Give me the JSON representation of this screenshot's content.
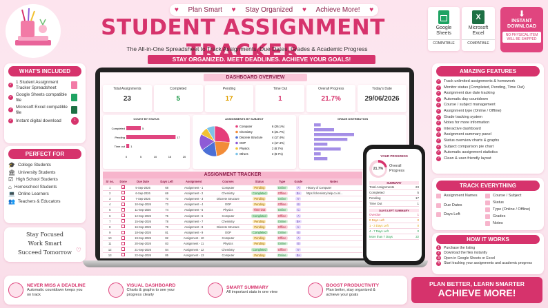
{
  "banner": [
    "Plan Smart",
    "Stay Organized",
    "Achieve More!"
  ],
  "title": "STUDENT ASSIGNMENT TRACKER",
  "subtitle": "The All-in-One Spreadsheet to Track Assignments, Due Dates, Grades & Academic Progress",
  "ribbon": "STAY ORGANIZED. MEET DEADLINES. ACHIEVE YOUR GOALS!",
  "compat": [
    {
      "name": "Google Sheets",
      "tag": "COMPATIBLE"
    },
    {
      "name": "Microsoft Excel",
      "tag": "COMPATIBLE"
    }
  ],
  "download": {
    "title": "INSTANT DOWNLOAD",
    "note": "NO PHYSICAL ITEM WILL BE SHIPPED"
  },
  "included": {
    "title": "WHAT'S INCLUDED",
    "items": [
      "1 Student Assignment Tracker Spreadsheet",
      "Google Sheets compatible file",
      "Microsoft Excel compatible file",
      "Instant digital download"
    ]
  },
  "perfect": {
    "title": "PERFECT FOR",
    "items": [
      "College Students",
      "University Students",
      "High School Students",
      "Homeschool Students",
      "Online Learners",
      "Teachers & Educators"
    ]
  },
  "motto": [
    "Stay Focused",
    "Work Smart",
    "Succeed Tomorrow"
  ],
  "features": {
    "title": "AMAZING FEATURES",
    "items": [
      "Track unlimited assignments & homework",
      "Monitor status (Completed, Pending, Time Out)",
      "Assignment due date tracking",
      "Automatic day countdown",
      "Course / subject management",
      "Assignment type (Online / Offline)",
      "Grade tracking system",
      "Notes for more information",
      "Interactive dashboard",
      "Assignment summary panel",
      "Status overview charts & graphs",
      "Subject comparison pie chart",
      "Automatic assignment statistics",
      "Clean & user-friendly layout"
    ]
  },
  "track": {
    "title": "TRACK EVERYTHING",
    "left": [
      "Assignment Names",
      "Due Dates",
      "Days Left"
    ],
    "right": [
      "Course / Subject",
      "Status",
      "Type (Online / Offline)",
      "Grades",
      "Notes"
    ]
  },
  "how": {
    "title": "HOW IT WORKS",
    "steps": [
      "Purchase the listing",
      "Download the files instantly",
      "Open in Google Sheets or Excel",
      "Start tracking your assignments and academic progress"
    ]
  },
  "dashboard": {
    "title": "DASHBOARD OVERVIEW",
    "kpis": [
      {
        "label": "Total Assignments",
        "value": "23"
      },
      {
        "label": "Completed",
        "value": "5"
      },
      {
        "label": "Pending",
        "value": "17"
      },
      {
        "label": "Time Out",
        "value": "1"
      },
      {
        "label": "Overall Progress",
        "value": "21.7%"
      },
      {
        "label": "Today's Date",
        "value": "29/06/2026"
      }
    ],
    "status_title": "COUNT BY STATUS",
    "subject_title": "ASSIGNMENTS BY SUBJECT",
    "grade_title": "GRADE DISTRIBUTION"
  },
  "chart_data": [
    {
      "type": "bar",
      "title": "COUNT BY STATUS",
      "categories": [
        "Completed",
        "Pending",
        "Time out"
      ],
      "values": [
        5,
        17,
        1
      ],
      "xlim": [
        0,
        20
      ],
      "xticks": [
        "0",
        "5",
        "10",
        "15",
        "20"
      ]
    },
    {
      "type": "pie",
      "title": "ASSIGNMENTS BY SUBJECT",
      "labels": [
        "Computer",
        "Chemistry",
        "Discrete Structure",
        "OOP",
        "Physics",
        "Others"
      ],
      "values": [
        6,
        5,
        4,
        4,
        2,
        2
      ],
      "display": [
        "6 (26.1%)",
        "5 (21.7%)",
        "4 (17.4%)",
        "4 (17.4%)",
        "2 (8.7%)",
        "2 (8.7%)"
      ],
      "colors": [
        "#e53e7a",
        "#f28c38",
        "#4b6fd6",
        "#8e5bd6",
        "#f2c232",
        "#7dc3e8"
      ]
    },
    {
      "type": "bar",
      "title": "GRADE DISTRIBUTION",
      "values": [
        1,
        3,
        6,
        5,
        2,
        4,
        1,
        2
      ]
    }
  ],
  "tracker": {
    "title": "ASSIGNMENT TRACKER",
    "headers": [
      "Sr no.",
      "Done",
      "Due Date",
      "Days Left",
      "Assignment",
      "Courses",
      "Status",
      "Type",
      "Grade",
      "Notes"
    ],
    "rows": [
      [
        "1",
        "✔",
        "5-Sep-2026",
        "68",
        "Assignment - 1",
        "Computer",
        "Pending",
        "Online",
        "A",
        "History of Computer"
      ],
      [
        "2",
        "",
        "6-Sep-2026",
        "69",
        "Assignment - 2",
        "Chemistry",
        "Completed",
        "Offline",
        "B+",
        "https://chemistry.help.co.in/..."
      ],
      [
        "3",
        "",
        "7-Sep-2026",
        "70",
        "Assignment - 3",
        "Discrete Structure",
        "Pending",
        "Online",
        "A-",
        ""
      ],
      [
        "4",
        "",
        "10-Sep-2026",
        "73",
        "Assignment - 4",
        "OOP",
        "Pending",
        "Offline",
        "B",
        ""
      ],
      [
        "5",
        "",
        "11-Sep-2026",
        "74",
        "Assignment - 5",
        "Physics",
        "Time Out",
        "Online",
        "C",
        ""
      ],
      [
        "6",
        "",
        "12-Sep-2026",
        "75",
        "Assignment - 6",
        "Computer",
        "Completed",
        "Offline",
        "A",
        ""
      ],
      [
        "7",
        "",
        "15-Sep-2026",
        "78",
        "Assignment - 7",
        "Chemistry",
        "Pending",
        "Online",
        "B+",
        ""
      ],
      [
        "8",
        "",
        "16-Sep-2026",
        "79",
        "Assignment - 8",
        "Discrete Structure",
        "Pending",
        "Offline",
        "A-",
        ""
      ],
      [
        "9",
        "",
        "18-Sep-2026",
        "81",
        "Assignment - 9",
        "OOP",
        "Completed",
        "Online",
        "B",
        ""
      ],
      [
        "10",
        "",
        "19-Sep-2026",
        "82",
        "Assignment - 10",
        "Computer",
        "Pending",
        "Offline",
        "A",
        ""
      ],
      [
        "11",
        "",
        "20-Sep-2026",
        "83",
        "Assignment - 11",
        "Physics",
        "Pending",
        "Online",
        "B",
        ""
      ],
      [
        "12",
        "",
        "21-Sep-2026",
        "84",
        "Assignment - 12",
        "Chemistry",
        "Completed",
        "Offline",
        "A-",
        ""
      ],
      [
        "13",
        "",
        "22-Sep-2026",
        "85",
        "Assignment - 13",
        "Computer",
        "Pending",
        "Online",
        "B+",
        ""
      ]
    ]
  },
  "phone": {
    "title": "YOUR PROGRESS",
    "value": "21.7%",
    "label": "Overall Progress",
    "summary_title": "SUMMARY",
    "summary": [
      [
        "Total Assignments",
        "23"
      ],
      [
        "Completed",
        "5"
      ],
      [
        "Pending",
        "17"
      ],
      [
        "Time Out",
        "1"
      ]
    ],
    "days_title": "DAYS LEFT SUMMARY",
    "days": [
      [
        "Overdue",
        "1"
      ],
      [
        "0 Days Left",
        "0"
      ],
      [
        "1 - 3 Days Left",
        "0"
      ],
      [
        "4 - 7 Days Left",
        "0"
      ],
      [
        "More than 7 Days",
        "22"
      ]
    ]
  },
  "bottom": [
    {
      "title": "NEVER MISS A DEADLINE",
      "desc": "Automatic countdown keeps you on track"
    },
    {
      "title": "VISUAL DASHBOARD",
      "desc": "Charts & graphs to see your progress clearly"
    },
    {
      "title": "SMART SUMMARY",
      "desc": "All important stats in one view"
    },
    {
      "title": "BOOST PRODUCTIVITY",
      "desc": "Plan better, stay organized & achieve your goals"
    }
  ],
  "cta": {
    "line1": "PLAN BETTER, LEARN SMARTER",
    "line2": "ACHIEVE MORE!"
  }
}
